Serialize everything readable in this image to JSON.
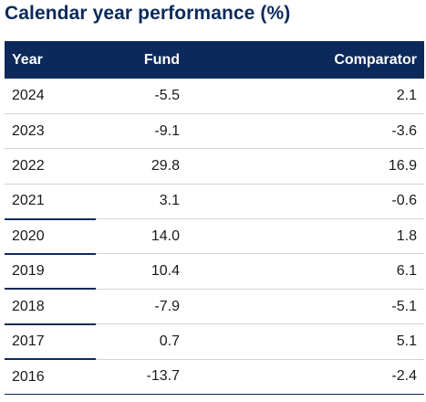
{
  "title": "Calendar year performance (%)",
  "table": {
    "headers": [
      "Year",
      "Fund",
      "Comparator"
    ],
    "rows": [
      {
        "year": "2024",
        "fund": "-5.5",
        "comparator": "2.1"
      },
      {
        "year": "2023",
        "fund": "-9.1",
        "comparator": "-3.6"
      },
      {
        "year": "2022",
        "fund": "29.8",
        "comparator": "16.9"
      },
      {
        "year": "2021",
        "fund": "3.1",
        "comparator": "-0.6"
      },
      {
        "year": "2020",
        "fund": "14.0",
        "comparator": "1.8"
      },
      {
        "year": "2019",
        "fund": "10.4",
        "comparator": "6.1"
      },
      {
        "year": "2018",
        "fund": "-7.9",
        "comparator": "-5.1"
      },
      {
        "year": "2017",
        "fund": "0.7",
        "comparator": "5.1"
      },
      {
        "year": "2016",
        "fund": "-13.7",
        "comparator": "-2.4"
      }
    ]
  },
  "colors": {
    "header_background": "#0b2a5b",
    "header_text": "#ffffff",
    "title_text": "#0b2a5b"
  }
}
